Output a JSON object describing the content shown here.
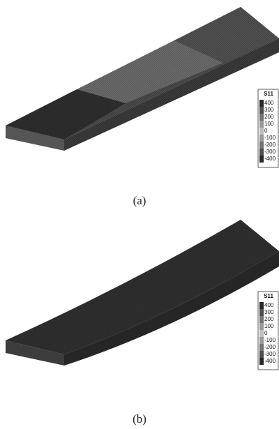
{
  "panels": [
    {
      "legend_title": "S11",
      "legend_levels": [
        400,
        300,
        200,
        100,
        0,
        -100,
        -200,
        -300,
        -400
      ],
      "label": "(a)"
    },
    {
      "legend_title": "S11",
      "legend_levels": [
        400,
        300,
        200,
        100,
        0,
        -100,
        -200,
        -300,
        -400
      ],
      "label": "(b)"
    }
  ]
}
